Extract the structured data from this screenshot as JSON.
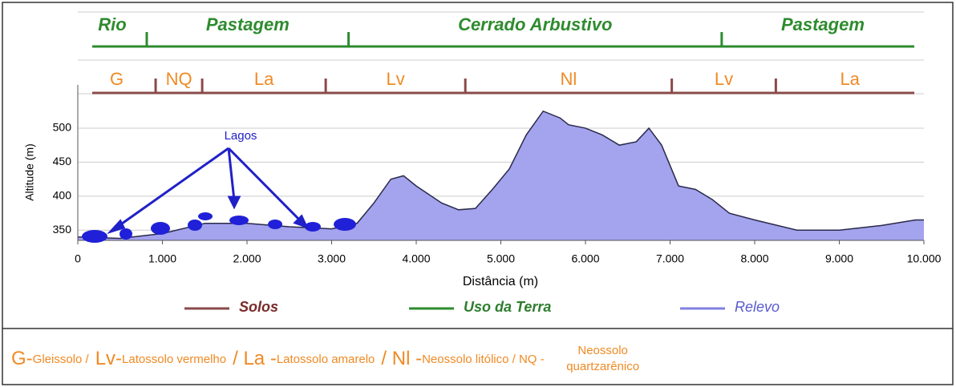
{
  "chart_data": {
    "type": "area",
    "x_label": "Distância (m)",
    "y_label": "Altitude (m)",
    "x": [
      0,
      500,
      1000,
      1500,
      2000,
      2500,
      3000,
      3300,
      3500,
      3700,
      3850,
      4000,
      4300,
      4500,
      4700,
      4900,
      5100,
      5300,
      5500,
      5700,
      5800,
      6000,
      6200,
      6400,
      6600,
      6750,
      6900,
      7100,
      7300,
      7500,
      7700,
      8000,
      8500,
      9000,
      9500,
      9900,
      10000
    ],
    "series": [
      {
        "name": "Relevo",
        "color": "#a3a3ee",
        "line_color": "#2a2a4a",
        "values": [
          340,
          338,
          345,
          360,
          360,
          355,
          352,
          360,
          390,
          425,
          430,
          415,
          390,
          380,
          382,
          410,
          440,
          490,
          525,
          515,
          505,
          500,
          490,
          475,
          480,
          500,
          475,
          415,
          410,
          395,
          375,
          365,
          350,
          350,
          357,
          365,
          365
        ]
      }
    ],
    "xlim": [
      0,
      10000
    ],
    "ylim": [
      335,
      540
    ],
    "xticks": [
      0,
      {
        "value": 1000,
        "label": "1.000"
      },
      {
        "value": 2000,
        "label": "2.000"
      },
      {
        "value": 3000,
        "label": "3.000"
      },
      {
        "value": 4000,
        "label": "4.000"
      },
      {
        "value": 5000,
        "label": "5.000"
      },
      {
        "value": 6000,
        "label": "6.000"
      },
      {
        "value": 7000,
        "label": "7.000"
      },
      {
        "value": 8000,
        "label": "8.000"
      },
      {
        "value": 9000,
        "label": "9.000"
      },
      {
        "value": 10000,
        "label": "10.000"
      }
    ],
    "yticks": [
      350,
      400,
      450,
      500
    ],
    "grid": true,
    "land_use": {
      "name": "Uso da Terra",
      "color": "#2e8b2e",
      "labels": [
        "Rio",
        "Pastagem",
        "Cerrado Arbustivo",
        "Pastagem"
      ],
      "boundaries": [
        815,
        3200,
        7610
      ]
    },
    "soils": {
      "name": "Solos",
      "color": "#8b4a4a",
      "label_color": "#f08a24",
      "labels": [
        "G",
        "NQ",
        "La",
        "Lv",
        "Nl",
        "Lv",
        "La"
      ],
      "boundaries": [
        920,
        1470,
        2930,
        4580,
        7020,
        8250
      ]
    },
    "annotation": "Lagos",
    "footnote": [
      "G-",
      "Gleissolo /",
      "Lv-",
      "Latossolo vermelho",
      "/ La -",
      "Latossolo amarelo",
      "/ Nl -",
      "Neossolo litólico / NQ -",
      "Neossolo quartzarênico"
    ]
  }
}
